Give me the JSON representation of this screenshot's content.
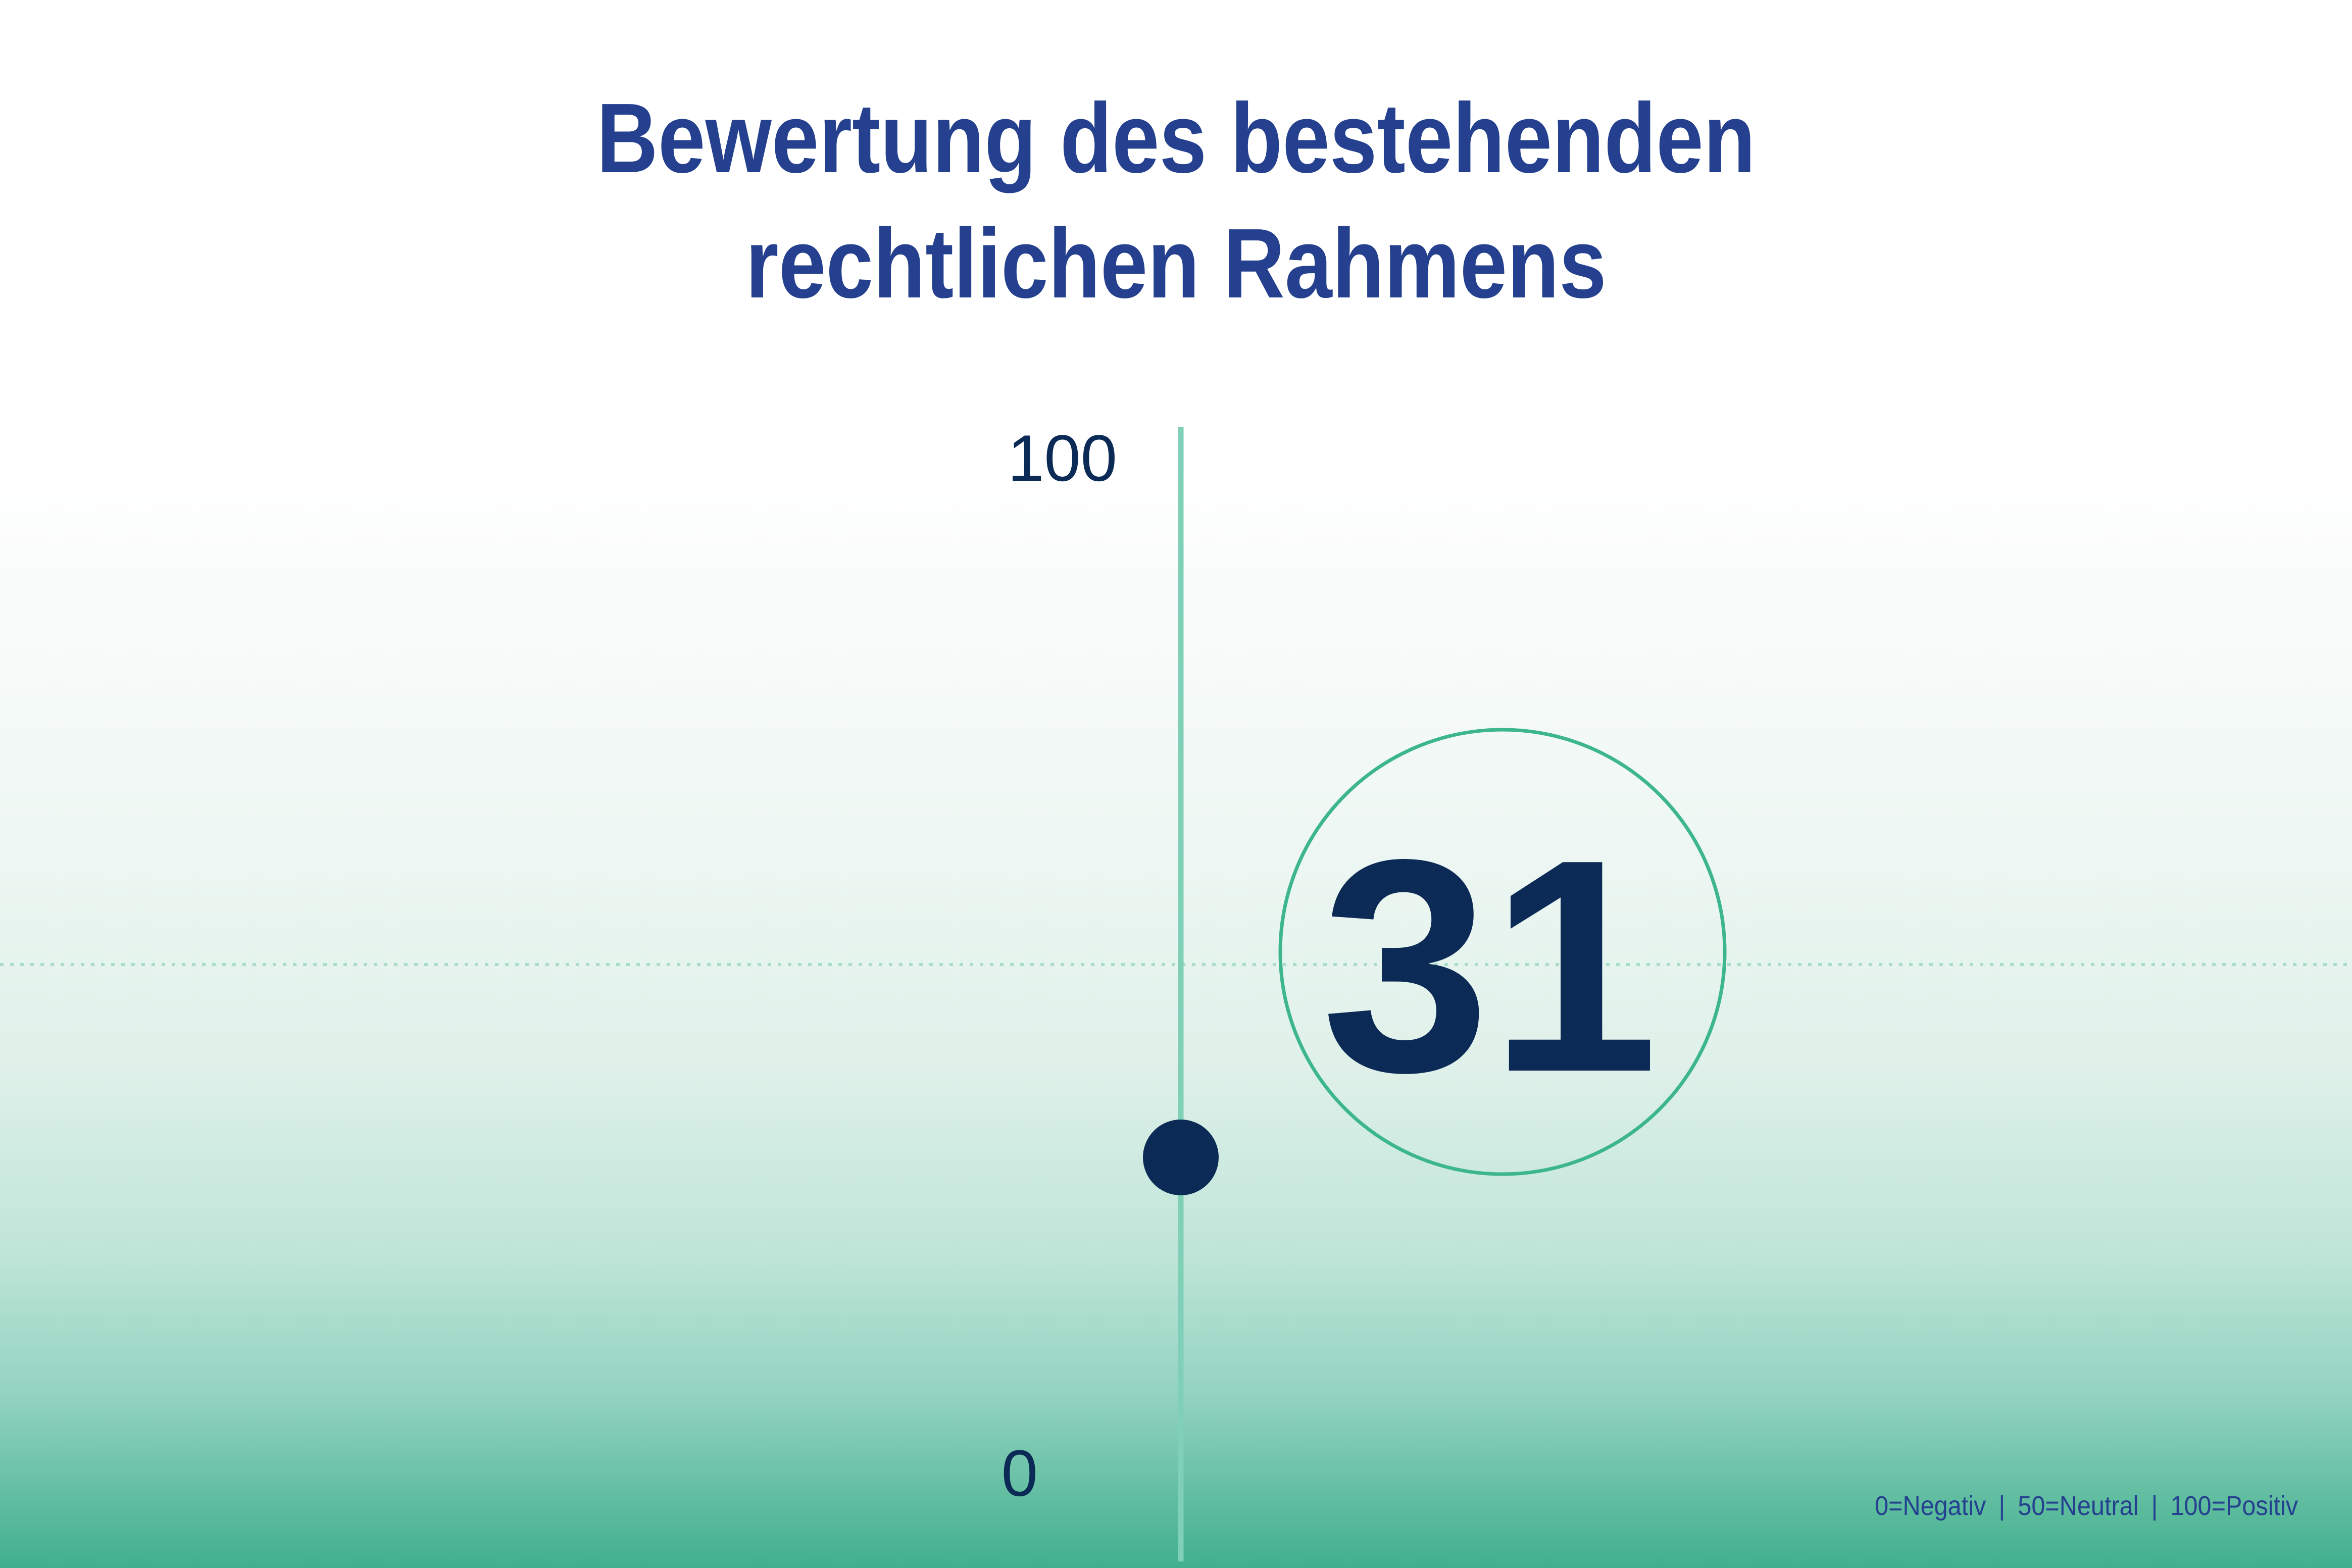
{
  "chart_data": {
    "type": "scatter",
    "title_lines": [
      "Bewertung des bestehenden",
      "rechtlichen Rahmens"
    ],
    "value": 31,
    "value_label": "31",
    "ylim": [
      0,
      100
    ],
    "reference_line": 50,
    "y_ticks": [
      "0",
      "100"
    ],
    "legend": [
      "0=Negativ",
      "50=Neutral",
      "100=Positiv"
    ],
    "legend_separator": "|",
    "colors": {
      "title": "#24408e",
      "axis": "#7fd0b7",
      "marker": "#0b2a55",
      "circle": "#3db68f",
      "reference": "#a9dccb"
    }
  }
}
